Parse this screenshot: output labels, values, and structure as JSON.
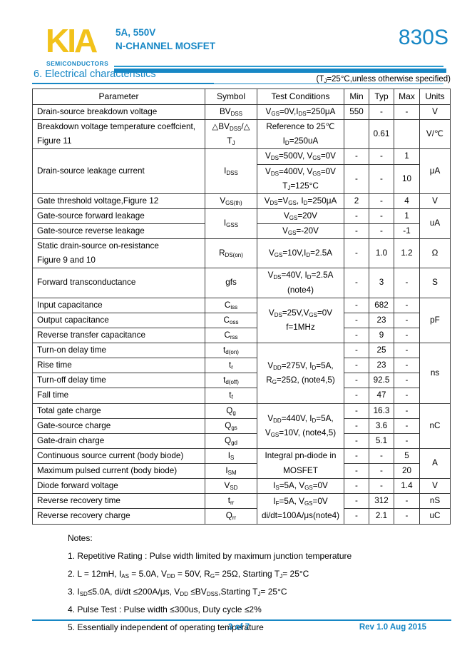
{
  "header": {
    "logo_text": "KIA",
    "logo_subtext": "SEMICONDUCTORS",
    "rating": "5A, 550V",
    "device_type": "N-CHANNEL MOSFET",
    "part_number": "830S"
  },
  "section": {
    "title": "6. Electrical characteristics",
    "condition_note": "(T_{J}=25°C,unless otherwise specified)"
  },
  "table": {
    "columns": [
      "Parameter",
      "Symbol",
      "Test Conditions",
      "Min",
      "Typ",
      "Max",
      "Units"
    ],
    "rows": [
      {
        "cells": [
          {
            "t": "Drain-source breakdown voltage",
            "a": "l"
          },
          {
            "t": "BV_{DSS}"
          },
          {
            "t": "V_{GS}=0V,I_{DS}=250μA"
          },
          {
            "t": "550"
          },
          {
            "t": "-"
          },
          {
            "t": "-"
          },
          {
            "t": "V"
          }
        ]
      },
      {
        "cells": [
          {
            "t": "Breakdown voltage temperature coeffcient,\nFigure 11",
            "a": "l"
          },
          {
            "t": "△BV_{DSS}/△\nT_{J}"
          },
          {
            "t": "Reference to 25℃\nI_{D}=250uA"
          },
          {
            "t": ""
          },
          {
            "t": "0.61"
          },
          {
            "t": ""
          },
          {
            "t": "V/℃"
          }
        ]
      },
      {
        "cells": [
          {
            "t": "Drain-source leakage current",
            "a": "l",
            "rs": 2
          },
          {
            "t": "I_{DSS}",
            "rs": 2
          },
          {
            "t": "V_{DS}=500V, V_{GS}=0V"
          },
          {
            "t": "-"
          },
          {
            "t": "-"
          },
          {
            "t": "1"
          },
          {
            "t": "μA",
            "rs": 2
          }
        ]
      },
      {
        "cells": [
          {
            "t": "V_{DS}=400V, V_{GS}=0V\nT_{J}=125°C"
          },
          {
            "t": "-"
          },
          {
            "t": "-"
          },
          {
            "t": "10"
          }
        ]
      },
      {
        "cells": [
          {
            "t": "Gate threshold voltage,Figure 12",
            "a": "l"
          },
          {
            "t": "V_{GS(th)}"
          },
          {
            "t": "V_{DS}=V_{GS}, I_{D}=250μA"
          },
          {
            "t": "2"
          },
          {
            "t": "-"
          },
          {
            "t": "4"
          },
          {
            "t": "V"
          }
        ]
      },
      {
        "cells": [
          {
            "t": "Gate-source forward leakage",
            "a": "l"
          },
          {
            "t": "I_{GSS}",
            "rs": 2
          },
          {
            "t": "V_{GS}=20V"
          },
          {
            "t": "-"
          },
          {
            "t": "-"
          },
          {
            "t": "1"
          },
          {
            "t": "uA",
            "rs": 2
          }
        ]
      },
      {
        "cells": [
          {
            "t": "Gate-source reverse leakage",
            "a": "l"
          },
          {
            "t": "V_{GS}=-20V"
          },
          {
            "t": "-"
          },
          {
            "t": "-"
          },
          {
            "t": "-1"
          }
        ]
      },
      {
        "cells": [
          {
            "t": "Static drain-source on-resistance\nFigure 9 and 10",
            "a": "l"
          },
          {
            "t": "R_{DS(on)}"
          },
          {
            "t": "V_{GS}=10V,I_{D}=2.5A"
          },
          {
            "t": "-"
          },
          {
            "t": "1.0"
          },
          {
            "t": "1.2"
          },
          {
            "t": "Ω"
          }
        ]
      },
      {
        "cells": [
          {
            "t": "Forward transconductance",
            "a": "l"
          },
          {
            "t": "gfs"
          },
          {
            "t": "V_{DS}=40V, I_{D}=2.5A\n(note4)"
          },
          {
            "t": "-"
          },
          {
            "t": "3"
          },
          {
            "t": "-"
          },
          {
            "t": "S"
          }
        ]
      },
      {
        "cells": [
          {
            "t": "Input capacitance",
            "a": "l"
          },
          {
            "t": "C_{iss}"
          },
          {
            "t": "V_{DS}=25V,V_{GS}=0V\nf=1MHz",
            "rs": 3
          },
          {
            "t": "-"
          },
          {
            "t": "682"
          },
          {
            "t": "-"
          },
          {
            "t": "pF",
            "rs": 3
          }
        ]
      },
      {
        "cells": [
          {
            "t": "Output capacitance",
            "a": "l"
          },
          {
            "t": "C_{oss}"
          },
          {
            "t": "-"
          },
          {
            "t": "23"
          },
          {
            "t": "-"
          }
        ]
      },
      {
        "cells": [
          {
            "t": "Reverse transfer capacitance",
            "a": "l"
          },
          {
            "t": "C_{rss}"
          },
          {
            "t": "-"
          },
          {
            "t": "9"
          },
          {
            "t": "-"
          }
        ]
      },
      {
        "cells": [
          {
            "t": "Turn-on delay time",
            "a": "l"
          },
          {
            "t": "t_{d(on)}"
          },
          {
            "t": "V_{DD}=275V, I_{D}=5A,\nR_{G}=25Ω, (note4,5)",
            "rs": 4
          },
          {
            "t": "-"
          },
          {
            "t": "25"
          },
          {
            "t": "-"
          },
          {
            "t": "ns",
            "rs": 4
          }
        ]
      },
      {
        "cells": [
          {
            "t": "Rise time",
            "a": "l"
          },
          {
            "t": "t_{r}"
          },
          {
            "t": "-"
          },
          {
            "t": "23"
          },
          {
            "t": "-"
          }
        ]
      },
      {
        "cells": [
          {
            "t": "Turn-off delay time",
            "a": "l"
          },
          {
            "t": "t_{d(off)}"
          },
          {
            "t": "-"
          },
          {
            "t": "92.5"
          },
          {
            "t": "-"
          }
        ]
      },
      {
        "cells": [
          {
            "t": "Fall time",
            "a": "l"
          },
          {
            "t": "t_{f}"
          },
          {
            "t": "-"
          },
          {
            "t": "47"
          },
          {
            "t": "-"
          }
        ]
      },
      {
        "cells": [
          {
            "t": "Total gate charge",
            "a": "l"
          },
          {
            "t": "Q_{g}"
          },
          {
            "t": "V_{DD}=440V, I_{D}=5A,\nV_{GS}=10V, (note4,5)",
            "rs": 3
          },
          {
            "t": "-"
          },
          {
            "t": "16.3"
          },
          {
            "t": "-"
          },
          {
            "t": "nC",
            "rs": 3
          }
        ]
      },
      {
        "cells": [
          {
            "t": "Gate-source charge",
            "a": "l"
          },
          {
            "t": "Q_{gs}"
          },
          {
            "t": "-"
          },
          {
            "t": "3.6"
          },
          {
            "t": "-"
          }
        ]
      },
      {
        "cells": [
          {
            "t": "Gate-drain charge",
            "a": "l"
          },
          {
            "t": "Q_{gd}"
          },
          {
            "t": "-"
          },
          {
            "t": "5.1"
          },
          {
            "t": "-"
          }
        ]
      },
      {
        "cells": [
          {
            "t": "Continuous source current (body biode)",
            "a": "l"
          },
          {
            "t": "I_{S}"
          },
          {
            "t": "Integral pn-diode in\nMOSFET",
            "rs": 2
          },
          {
            "t": "-"
          },
          {
            "t": "-"
          },
          {
            "t": "5"
          },
          {
            "t": "A",
            "rs": 2
          }
        ]
      },
      {
        "cells": [
          {
            "t": "Maximum pulsed current (body biode)",
            "a": "l"
          },
          {
            "t": "I_{SM}"
          },
          {
            "t": "-"
          },
          {
            "t": "-"
          },
          {
            "t": "20"
          }
        ]
      },
      {
        "cells": [
          {
            "t": "Diode forward voltage",
            "a": "l"
          },
          {
            "t": "V_{SD}"
          },
          {
            "t": "I_{S}=5A, V_{GS}=0V"
          },
          {
            "t": "-"
          },
          {
            "t": "-"
          },
          {
            "t": "1.4"
          },
          {
            "t": "V"
          }
        ]
      },
      {
        "cells": [
          {
            "t": "Reverse recovery time",
            "a": "l"
          },
          {
            "t": "t_{rr}"
          },
          {
            "t": "I_{F}=5A, V_{GS}=0V\ndi/dt=100A/μs(note4)",
            "rs": 2
          },
          {
            "t": "-"
          },
          {
            "t": "312"
          },
          {
            "t": "-"
          },
          {
            "t": "nS"
          }
        ]
      },
      {
        "cells": [
          {
            "t": "Reverse recovery charge",
            "a": "l"
          },
          {
            "t": "Q_{rr}"
          },
          {
            "t": "-"
          },
          {
            "t": "2.1"
          },
          {
            "t": "-"
          },
          {
            "t": "uC"
          }
        ]
      }
    ]
  },
  "notes": {
    "title": "Notes:",
    "items": [
      "1. Repetitive Rating : Pulse width limited by maximum junction temperature",
      "2. L = 12mH, I_{AS} = 5.0A, V_{DD} = 50V, R_{G}= 25Ω, Starting T_{J}= 25°C",
      "3. I_{SD}≤5.0A, di/dt ≤200A/μs, V_{DD} ≤BV_{DSS},Starting T_{J}= 25°C",
      "4. Pulse Test : Pulse width ≤300us, Duty cycle ≤2%",
      "5. Essentially independent of operating temperature"
    ]
  },
  "footer": {
    "page": "3 of 7",
    "rev": "Rev 1.0 Aug 2015"
  },
  "colors": {
    "accent_blue": "#1787c5",
    "logo_yellow": "#f2c21b"
  }
}
